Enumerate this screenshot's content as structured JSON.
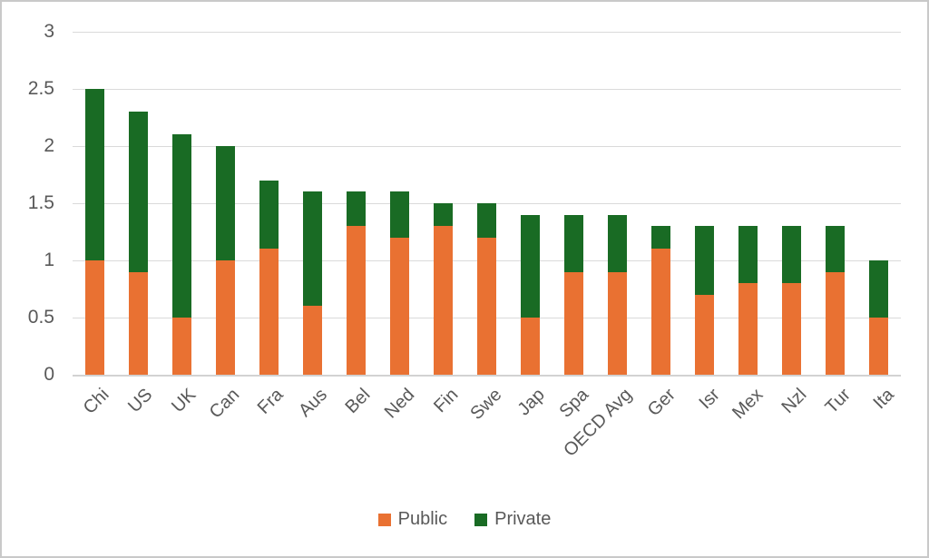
{
  "chart_data": {
    "type": "bar",
    "stacked": true,
    "title": "",
    "xlabel": "",
    "ylabel": "",
    "categories": [
      "Chi",
      "US",
      "UK",
      "Can",
      "Fra",
      "Aus",
      "Bel",
      "Ned",
      "Fin",
      "Swe",
      "Jap",
      "Spa",
      "OECD Avg",
      "Ger",
      "Isr",
      "Mex",
      "Nzl",
      "Tur",
      "Ita"
    ],
    "series": [
      {
        "name": "Public",
        "color": "#E97132",
        "values": [
          1.0,
          0.9,
          0.5,
          1.0,
          1.1,
          0.6,
          1.3,
          1.2,
          1.3,
          1.2,
          0.5,
          0.9,
          0.9,
          1.1,
          0.7,
          0.8,
          0.8,
          0.9,
          0.5
        ]
      },
      {
        "name": "Private",
        "color": "#196B24",
        "values": [
          1.5,
          1.4,
          1.6,
          1.0,
          0.6,
          1.0,
          0.3,
          0.4,
          0.2,
          0.3,
          0.9,
          0.5,
          0.5,
          0.2,
          0.6,
          0.5,
          0.5,
          0.4,
          0.5
        ]
      }
    ],
    "totals": [
      2.5,
      2.3,
      2.1,
      2.0,
      1.7,
      1.6,
      1.6,
      1.6,
      1.5,
      1.5,
      1.4,
      1.4,
      1.4,
      1.3,
      1.3,
      1.3,
      1.3,
      1.3,
      1.0
    ],
    "y_axis": {
      "min": 0,
      "max": 3,
      "tick_step": 0.5,
      "tick_labels": [
        "0",
        "0.5",
        "1",
        "1.5",
        "2",
        "2.5",
        "3"
      ]
    },
    "grid": true,
    "legend": {
      "position": "bottom",
      "labels": [
        "Public",
        "Private"
      ]
    },
    "colors": {
      "axis_text": "#595959",
      "gridline": "#DADADA",
      "axis_line": "#D2D2D2",
      "background": "#FFFFFF",
      "border": "#C9C9C9"
    }
  }
}
